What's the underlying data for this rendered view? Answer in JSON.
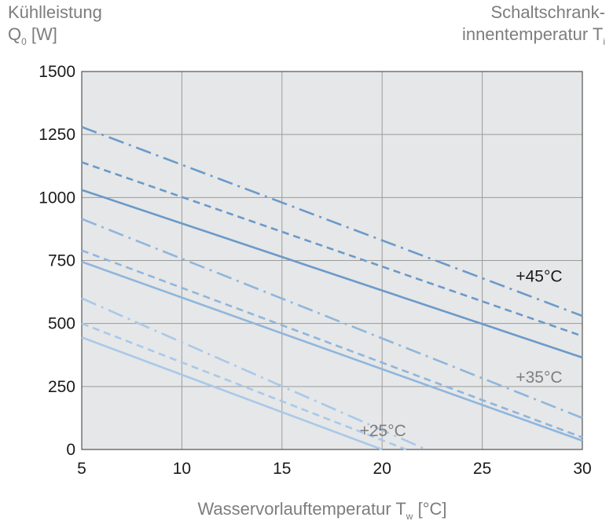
{
  "texts": {
    "y_title_line1": "Kühlleistung",
    "y_title_line2_main": "Q",
    "y_title_line2_sub": "0",
    "y_title_line2_rest": " [W]",
    "right_title_line1": "Schaltschrank-",
    "right_title_line2_main": "innentemperatur T",
    "right_title_line2_sub": "i",
    "x_title_main": "Wasservorlauftemperatur T",
    "x_title_sub": "w",
    "x_title_rest": " [°C]"
  },
  "colors": {
    "plot_background": "#e6e7e8",
    "grid": "#9b9b9b",
    "series_45": "#6b9ac9",
    "series_35": "#8fb6dd",
    "series_25": "#a9c9e9",
    "label_45": "#1a1a1a",
    "label_35": "#7d7d7d",
    "label_25": "#7d7d7d",
    "tick_text": "#1a1a1a"
  },
  "chart_data": {
    "type": "line",
    "xlim": [
      5,
      30
    ],
    "ylim": [
      0,
      1500
    ],
    "xticks": [
      5,
      10,
      15,
      20,
      25,
      30
    ],
    "yticks": [
      0,
      250,
      500,
      750,
      1000,
      1250,
      1500
    ],
    "grid": true,
    "group_labels": [
      {
        "text": "+45°C",
        "x": 29,
        "y": 690,
        "color_key": "label_45"
      },
      {
        "text": "+35°C",
        "x": 29,
        "y": 290,
        "color_key": "label_35"
      },
      {
        "text": "+25°C",
        "x": 21.2,
        "y": 78,
        "color_key": "label_25"
      }
    ],
    "series": [
      {
        "group": "+45°C",
        "style": "dashdot",
        "color_key": "series_45",
        "x": [
          5,
          30
        ],
        "y": [
          1280,
          530
        ]
      },
      {
        "group": "+45°C",
        "style": "dashed",
        "color_key": "series_45",
        "x": [
          5,
          30
        ],
        "y": [
          1140,
          450
        ]
      },
      {
        "group": "+45°C",
        "style": "solid",
        "color_key": "series_45",
        "x": [
          5,
          30
        ],
        "y": [
          1030,
          365
        ]
      },
      {
        "group": "+35°C",
        "style": "dashdot",
        "color_key": "series_35",
        "x": [
          5,
          30
        ],
        "y": [
          915,
          125
        ]
      },
      {
        "group": "+35°C",
        "style": "dashed",
        "color_key": "series_35",
        "x": [
          5,
          30
        ],
        "y": [
          790,
          48
        ]
      },
      {
        "group": "+35°C",
        "style": "solid",
        "color_key": "series_35",
        "x": [
          5,
          30
        ],
        "y": [
          745,
          35
        ]
      },
      {
        "group": "+25°C",
        "style": "dashdot",
        "color_key": "series_25",
        "x": [
          5,
          22.2
        ],
        "y": [
          600,
          0
        ]
      },
      {
        "group": "+25°C",
        "style": "dashed",
        "color_key": "series_25",
        "x": [
          5,
          21.2
        ],
        "y": [
          500,
          0
        ]
      },
      {
        "group": "+25°C",
        "style": "solid",
        "color_key": "series_25",
        "x": [
          5,
          20
        ],
        "y": [
          445,
          0
        ]
      }
    ]
  }
}
